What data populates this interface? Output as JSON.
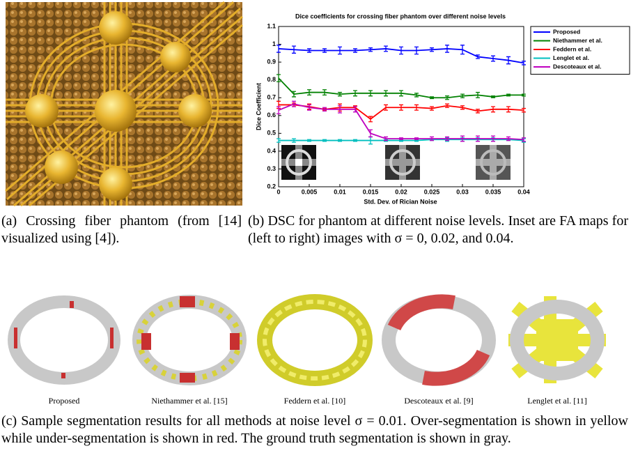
{
  "chart_data": {
    "type": "line",
    "title": "Dice coefficients for crossing fiber phantom over different noise levels",
    "x_label": "Std. Dev. of Rician Noise",
    "y_label": "Dice Coefficient",
    "x": [
      0,
      0.0025,
      0.005,
      0.0075,
      0.01,
      0.0125,
      0.015,
      0.0175,
      0.02,
      0.0225,
      0.025,
      0.0275,
      0.03,
      0.0325,
      0.035,
      0.0375,
      0.04
    ],
    "xlim": [
      0,
      0.04
    ],
    "xticks": [
      0,
      0.005,
      0.01,
      0.015,
      0.02,
      0.025,
      0.03,
      0.035,
      0.04
    ],
    "ylim": [
      0.2,
      1.1
    ],
    "yticks": [
      0.2,
      0.3,
      0.4,
      0.5,
      0.6,
      0.7,
      0.8,
      0.9,
      1,
      1.1
    ],
    "legend": "right",
    "series": [
      {
        "name": "Proposed",
        "color": "#0000ff",
        "values": [
          0.975,
          0.97,
          0.965,
          0.965,
          0.965,
          0.965,
          0.97,
          0.975,
          0.965,
          0.965,
          0.97,
          0.975,
          0.97,
          0.93,
          0.92,
          0.91,
          0.895
        ],
        "errors": [
          0.02,
          0.02,
          0.01,
          0.01,
          0.02,
          0.01,
          0.01,
          0.015,
          0.02,
          0.02,
          0.01,
          0.02,
          0.025,
          0.01,
          0.015,
          0.02,
          0.01
        ]
      },
      {
        "name": "Niethammer et al.",
        "color": "#008000",
        "values": [
          0.81,
          0.72,
          0.73,
          0.73,
          0.72,
          0.725,
          0.725,
          0.725,
          0.725,
          0.715,
          0.7,
          0.7,
          0.71,
          0.715,
          0.705,
          0.715,
          0.715
        ],
        "errors": [
          0.02,
          0.015,
          0.015,
          0.015,
          0.01,
          0.015,
          0.015,
          0.015,
          0.015,
          0.01,
          0.005,
          0.01,
          0.01,
          0.015,
          0.005,
          0.005,
          0.005
        ]
      },
      {
        "name": "Feddern et al.",
        "color": "#ff0000",
        "values": [
          0.66,
          0.66,
          0.65,
          0.635,
          0.645,
          0.645,
          0.58,
          0.645,
          0.645,
          0.645,
          0.64,
          0.655,
          0.645,
          0.625,
          0.635,
          0.635,
          0.63
        ],
        "errors": [
          0.02,
          0.01,
          0.015,
          0.005,
          0.02,
          0.01,
          0.015,
          0.015,
          0.015,
          0.015,
          0.01,
          0.01,
          0.01,
          0.01,
          0.015,
          0.015,
          0.01
        ]
      },
      {
        "name": "Lenglet et al.",
        "color": "#00bfbf",
        "values": [
          0.46,
          0.46,
          0.46,
          0.46,
          0.46,
          0.46,
          0.46,
          0.46,
          0.46,
          0.46,
          0.465,
          0.465,
          0.465,
          0.465,
          0.465,
          0.465,
          0.46
        ],
        "errors": [
          0.01,
          0.01,
          0.005,
          0.005,
          0.005,
          0.005,
          0.02,
          0.005,
          0.005,
          0.005,
          0.005,
          0.01,
          0.01,
          0.01,
          0.01,
          0.005,
          0.01
        ]
      },
      {
        "name": "Descoteaux et al.",
        "color": "#bf00bf",
        "values": [
          0.63,
          0.665,
          0.645,
          0.635,
          0.635,
          0.635,
          0.5,
          0.47,
          0.47,
          0.47,
          0.47,
          0.47,
          0.47,
          0.47,
          0.47,
          0.47,
          0.465
        ],
        "errors": [
          0.02,
          0.015,
          0.015,
          0.01,
          0.02,
          0.015,
          0.02,
          0.01,
          0.005,
          0.005,
          0.01,
          0.01,
          0.015,
          0.015,
          0.015,
          0.01,
          0.01
        ]
      }
    ]
  },
  "captions": {
    "a": "(a) Crossing fiber phantom (from [14] visualized using [4]).",
    "b": "(b) DSC for phantom at different noise levels. Inset are FA maps for (left to right) images with σ = 0, 0.02, and 0.04.",
    "c": "(c) Sample segmentation results for all methods at noise level σ = 0.01. Over-segmentation is shown in yellow while under-segmentation is shown in red. The ground truth segmentation is shown in gray."
  },
  "method_labels": [
    "Proposed",
    "Niethammer et al. [15]",
    "Feddern et al. [10]",
    "Descoteaux et al. [9]",
    "Lenglet et al. [11]"
  ]
}
